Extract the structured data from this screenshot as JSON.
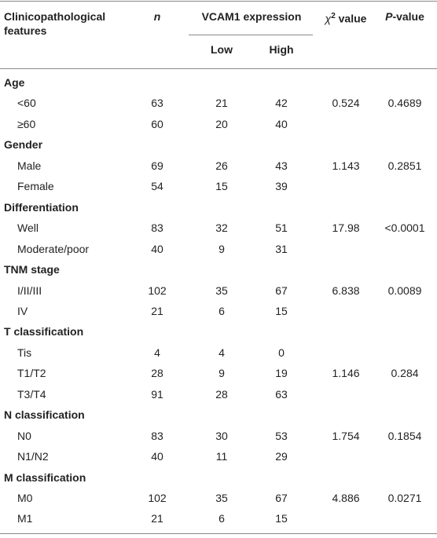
{
  "table": {
    "header": {
      "feature": "Clinicopathological features",
      "n": "n",
      "expression": "VCAM1 expression",
      "low": "Low",
      "high": "High",
      "chi": {
        "symbol": "χ",
        "sup": "2",
        "rest": " value"
      },
      "p": {
        "italic": "P",
        "rest": "-value"
      }
    },
    "groups": [
      {
        "title": "Age",
        "rows": [
          [
            "<60",
            "63",
            "21",
            "42",
            "0.524",
            "0.4689"
          ],
          [
            "≥60",
            "60",
            "20",
            "40",
            null,
            null
          ]
        ]
      },
      {
        "title": "Gender",
        "rows": [
          [
            "Male",
            "69",
            "26",
            "43",
            "1.143",
            "0.2851"
          ],
          [
            "Female",
            "54",
            "15",
            "39",
            null,
            null
          ]
        ]
      },
      {
        "title": "Differentiation",
        "rows": [
          [
            "Well",
            "83",
            "32",
            "51",
            "17.98",
            "<0.0001"
          ],
          [
            "Moderate/poor",
            "40",
            "9",
            "31",
            null,
            null
          ]
        ]
      },
      {
        "title": "TNM stage",
        "rows": [
          [
            "I/II/III",
            "102",
            "35",
            "67",
            "6.838",
            "0.0089"
          ],
          [
            "IV",
            "21",
            "6",
            "15",
            null,
            null
          ]
        ]
      },
      {
        "title": "T classification",
        "rows": [
          [
            "Tis",
            "4",
            "4",
            "0",
            null,
            null
          ],
          [
            "T1/T2",
            "28",
            "9",
            "19",
            "1.146",
            "0.284"
          ],
          [
            "T3/T4",
            "91",
            "28",
            "63",
            null,
            null
          ]
        ]
      },
      {
        "title": "N classification",
        "rows": [
          [
            "N0",
            "83",
            "30",
            "53",
            "1.754",
            "0.1854"
          ],
          [
            "N1/N2",
            "40",
            "11",
            "29",
            null,
            null
          ]
        ]
      },
      {
        "title": "M classification",
        "rows": [
          [
            "M0",
            "102",
            "35",
            "67",
            "4.886",
            "0.0271"
          ],
          [
            "M1",
            "21",
            "6",
            "15",
            null,
            null
          ]
        ]
      }
    ]
  }
}
